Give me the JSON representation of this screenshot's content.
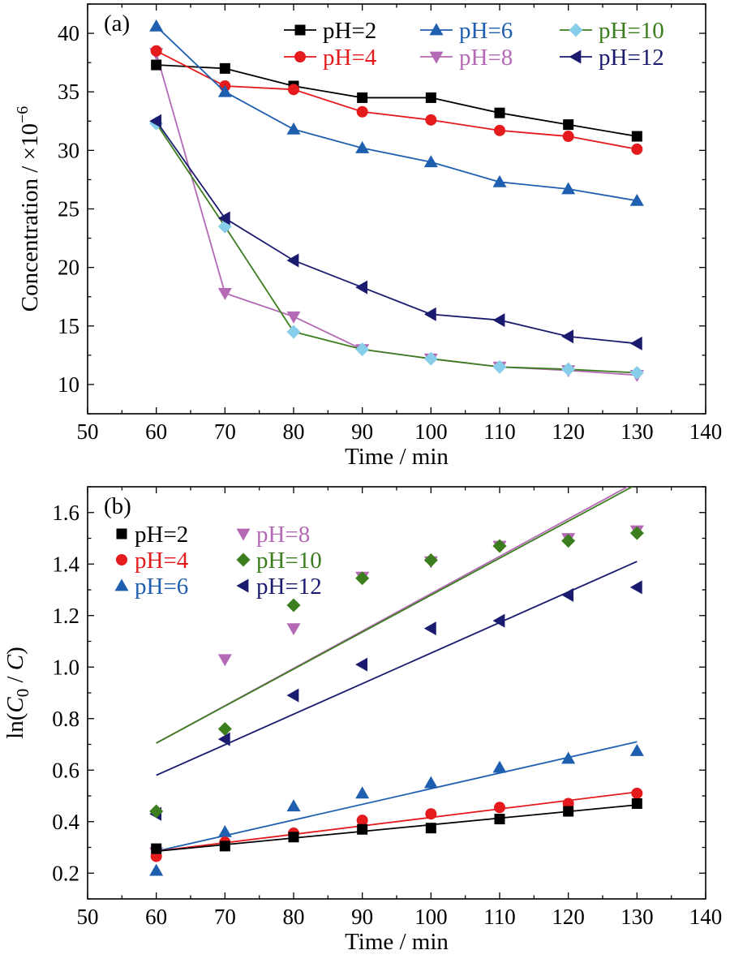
{
  "chart_data": [
    {
      "type": "line",
      "panel_label": "(a)",
      "xlabel": "Time / min",
      "ylabel": "Concentration / ×10",
      "ylabel_exponent": "−6",
      "xlim": [
        50,
        140
      ],
      "ylim": [
        7.5,
        42.5
      ],
      "xticks": [
        50,
        60,
        70,
        80,
        90,
        100,
        110,
        120,
        130,
        140
      ],
      "yticks": [
        10,
        15,
        20,
        25,
        30,
        35,
        40
      ],
      "legend_position": "top-right",
      "x": [
        60,
        70,
        80,
        90,
        100,
        110,
        120,
        130
      ],
      "series": [
        {
          "name": "pH=2",
          "color": "#000000",
          "marker": "square",
          "values": [
            37.3,
            37.0,
            35.5,
            34.5,
            34.5,
            33.2,
            32.2,
            31.2
          ]
        },
        {
          "name": "pH=4",
          "color": "#e41a1c",
          "marker": "circle",
          "values": [
            38.5,
            35.5,
            35.2,
            33.3,
            32.6,
            31.7,
            31.2,
            30.1
          ]
        },
        {
          "name": "pH=6",
          "color": "#1f5fb0",
          "marker": "triangle-up",
          "values": [
            40.6,
            35.0,
            31.8,
            30.2,
            29.0,
            27.3,
            26.7,
            25.7
          ]
        },
        {
          "name": "pH=8",
          "color": "#b469b4",
          "marker": "triangle-down",
          "values": [
            38.3,
            17.8,
            15.8,
            13.0,
            12.2,
            11.5,
            11.2,
            10.8
          ]
        },
        {
          "name": "pH=10",
          "color": "#3c7d1e",
          "marker": "diamond",
          "values": [
            32.3,
            23.5,
            14.5,
            13.0,
            12.2,
            11.5,
            11.3,
            11.0
          ]
        },
        {
          "name": "pH=12",
          "color": "#1a1a6e",
          "marker": "triangle-left",
          "values": [
            32.5,
            24.2,
            20.6,
            18.3,
            16.0,
            15.5,
            14.1,
            13.5
          ]
        }
      ],
      "line_colors": {
        "pH=8": "#b469b4",
        "pH=10": "#3c7d1e",
        "pH=12": "#1a1a6e",
        "pH=2": "#000000",
        "pH=4": "#e41a1c",
        "pH=6": "#1f5fb0"
      },
      "marker_colors": {
        "pH=10": "#87ceeb"
      }
    },
    {
      "type": "scatter",
      "panel_label": "(b)",
      "xlabel": "Time / min",
      "ylabel": "ln(C0 / C)",
      "xlim": [
        50,
        140
      ],
      "ylim": [
        0.1,
        1.7
      ],
      "xticks": [
        50,
        60,
        70,
        80,
        90,
        100,
        110,
        120,
        130,
        140
      ],
      "yticks": [
        0.2,
        0.4,
        0.6,
        0.8,
        1.0,
        1.2,
        1.4,
        1.6
      ],
      "yticks_labels": [
        "0.2",
        "0.4",
        "0.6",
        "0.8",
        "1.0",
        "1.2",
        "1.4",
        "1.6"
      ],
      "legend_position": "top-left",
      "x": [
        60,
        70,
        80,
        90,
        100,
        110,
        120,
        130
      ],
      "series": [
        {
          "name": "pH=2",
          "color": "#000000",
          "marker": "square",
          "values": [
            0.295,
            0.305,
            0.34,
            0.37,
            0.375,
            0.41,
            0.44,
            0.47
          ],
          "fit": [
            0.285,
            0.465
          ]
        },
        {
          "name": "pH=4",
          "color": "#e41a1c",
          "marker": "circle",
          "values": [
            0.265,
            0.32,
            0.355,
            0.405,
            0.43,
            0.455,
            0.47,
            0.51
          ],
          "fit": [
            0.285,
            0.515
          ]
        },
        {
          "name": "pH=6",
          "color": "#1f5fb0",
          "marker": "triangle-up",
          "values": [
            0.21,
            0.36,
            0.46,
            0.51,
            0.55,
            0.61,
            0.645,
            0.675
          ],
          "fit": [
            0.285,
            0.71
          ]
        },
        {
          "name": "pH=8",
          "color": "#b469b4",
          "marker": "triangle-down",
          "values": [
            0.28,
            1.03,
            1.15,
            1.35,
            1.41,
            1.47,
            1.5,
            1.53
          ],
          "fit": [
            0.705,
            1.72
          ]
        },
        {
          "name": "pH=10",
          "color": "#3c7d1e",
          "marker": "diamond",
          "values": [
            0.44,
            0.76,
            1.24,
            1.345,
            1.415,
            1.47,
            1.49,
            1.52
          ],
          "fit": [
            0.705,
            1.71
          ]
        },
        {
          "name": "pH=12",
          "color": "#1a1a6e",
          "marker": "triangle-left",
          "values": [
            0.43,
            0.72,
            0.89,
            1.01,
            1.15,
            1.18,
            1.28,
            1.31
          ],
          "fit": [
            0.58,
            1.41
          ]
        }
      ]
    }
  ]
}
